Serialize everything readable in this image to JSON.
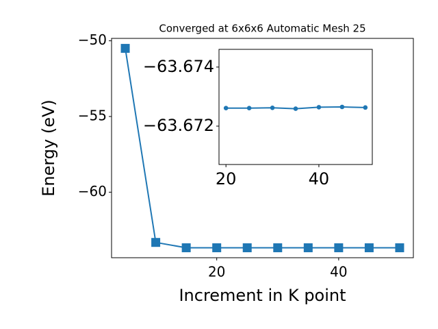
{
  "chart_data": [
    {
      "type": "line",
      "title": "Converged at 6x6x6 Automatic Mesh 25",
      "x_label": "Increment in K point",
      "y_label": "Energy (eV)",
      "x": [
        5,
        10,
        15,
        20,
        25,
        30,
        35,
        40,
        45,
        50
      ],
      "values": [
        -50.5,
        -63.32,
        -63.6726,
        -63.67261,
        -63.67261,
        -63.67262,
        -63.67259,
        -63.67264,
        -63.67265,
        -63.67263
      ],
      "color": "#1f77b4",
      "marker": "square",
      "xlim": [
        2.75,
        52.25
      ],
      "xticks": [
        20,
        40
      ],
      "ylim": [
        -64.33,
        -49.84
      ],
      "yticks": [
        {
          "value": -60,
          "label": "−60"
        },
        {
          "value": -55,
          "label": "−55"
        },
        {
          "value": -50,
          "label": "−50"
        }
      ]
    },
    {
      "type": "line",
      "x": [
        20,
        25,
        30,
        35,
        40,
        45,
        50
      ],
      "values": [
        -63.67261,
        -63.67261,
        -63.67262,
        -63.67259,
        -63.67264,
        -63.67265,
        -63.67263
      ],
      "color": "#1f77b4",
      "marker": "circle",
      "xlim": [
        18.5,
        51.5
      ],
      "xticks": [
        20,
        40
      ],
      "ylim": [
        -63.6707,
        -63.6746
      ],
      "yticks": [
        {
          "value": -63.674,
          "label": "−63.674"
        },
        {
          "value": -63.672,
          "label": "−63.672"
        }
      ]
    }
  ]
}
